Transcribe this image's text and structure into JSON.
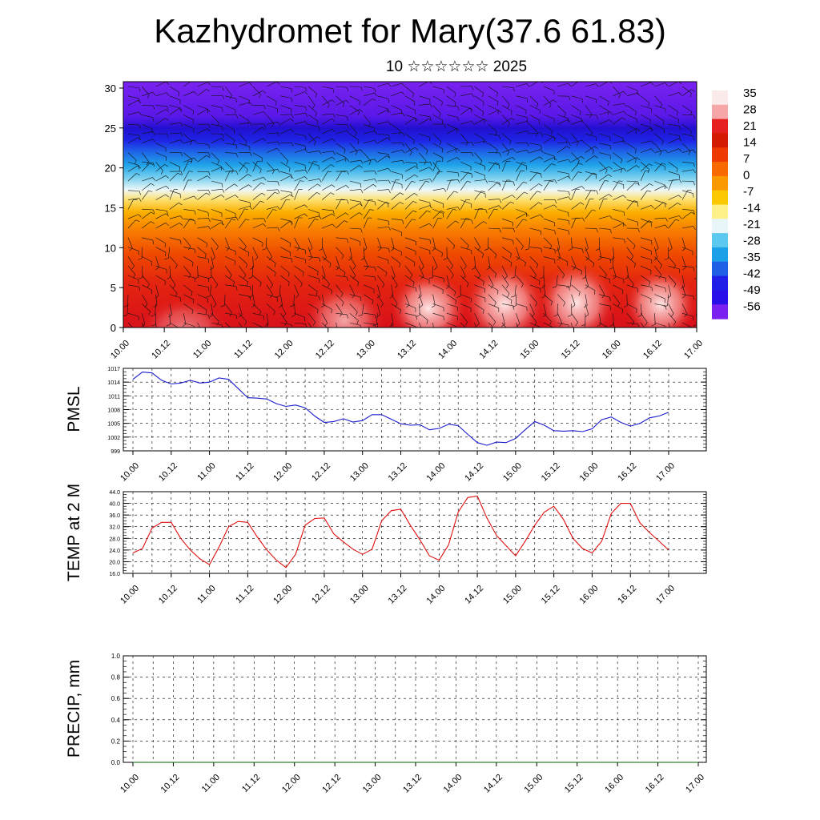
{
  "header": {
    "title": "Kazhydromet for Mary(37.6 61.83)",
    "subtitle": "10 ☆☆☆☆☆☆ 2025"
  },
  "colors": {
    "pmsl_line": "#1a1acc",
    "temp_line": "#e01010",
    "precip_line": "#006400",
    "frame": "#000000",
    "grid": "#000000"
  },
  "time_tick_labels": [
    "10.00",
    "10.12",
    "11.00",
    "11.12",
    "12.00",
    "12.12",
    "13.00",
    "13.12",
    "14.00",
    "14.12",
    "15.00",
    "15.12",
    "16.00",
    "16.12",
    "17.00"
  ],
  "chart_data": [
    {
      "type": "heatmap",
      "name_hint": "vertical cross-section with wind barbs",
      "x_tick_labels": [
        "10.00",
        "10.12",
        "11.00",
        "11.12",
        "12.00",
        "12.12",
        "13.00",
        "13.12",
        "14.00",
        "14.12",
        "15.00",
        "15.12",
        "16.00",
        "16.12",
        "17.00"
      ],
      "y_tick_labels": [
        "0",
        "5",
        "10",
        "15",
        "20",
        "25",
        "30"
      ],
      "ylim": [
        0,
        30.8
      ],
      "colorbar_labels": [
        "35",
        "28",
        "21",
        "14",
        "7",
        "0",
        "-7",
        "-14",
        "-21",
        "-28",
        "-35",
        "-42",
        "-49",
        "-56"
      ],
      "colorbar_range": [
        -60,
        38
      ],
      "colorbar_colors": [
        "#fbeaea",
        "#f6a6a6",
        "#e62020",
        "#d41a00",
        "#ee3a00",
        "#f86a00",
        "#fb9a00",
        "#fcc800",
        "#fef08a",
        "#e8f6fa",
        "#5ac8ef",
        "#1aa0e6",
        "#1f5fe8",
        "#1f1fe8",
        "#2a10e8",
        "#7a20f0"
      ],
      "wind_barbs": true
    },
    {
      "type": "line",
      "ylabel": "PMSL",
      "y_tick_labels": [
        "1017",
        "1014",
        "1011",
        "1008",
        "1005",
        "1002",
        "999"
      ],
      "ylim": [
        999,
        1017
      ],
      "x_tick_labels": [
        "10.00",
        "10.12",
        "11.00",
        "11.12",
        "12.00",
        "12.12",
        "13.00",
        "13.12",
        "14.00",
        "14.12",
        "15.00",
        "15.12",
        "16.00",
        "16.12",
        "17.00"
      ],
      "x_hours": [
        0,
        3,
        6,
        9,
        12,
        15,
        18,
        21,
        24,
        27,
        30,
        33,
        36,
        39,
        42,
        45,
        48,
        51,
        54,
        57,
        60,
        63,
        66,
        69,
        72,
        75,
        78,
        81,
        84,
        87,
        90,
        93,
        96,
        99,
        102,
        105,
        108,
        111,
        114,
        117,
        120,
        123,
        126,
        129,
        132,
        135,
        138,
        141,
        144,
        147,
        150,
        153,
        156,
        159,
        162,
        165,
        168
      ],
      "values": [
        1014.6,
        1016.2,
        1016.0,
        1014.4,
        1013.6,
        1013.8,
        1014.4,
        1013.8,
        1014.0,
        1014.9,
        1014.6,
        1012.6,
        1010.6,
        1010.5,
        1010.3,
        1009.3,
        1008.7,
        1009.0,
        1008.4,
        1006.6,
        1005.2,
        1005.4,
        1006.0,
        1005.3,
        1005.6,
        1006.9,
        1006.9,
        1005.9,
        1004.9,
        1004.6,
        1004.7,
        1003.6,
        1003.9,
        1004.8,
        1004.5,
        1002.6,
        1000.8,
        1000.2,
        1000.9,
        1000.8,
        1001.7,
        1003.6,
        1005.4,
        1004.6,
        1003.4,
        1003.3,
        1003.4,
        1003.2,
        1003.8,
        1005.8,
        1006.4,
        1005.2,
        1004.4,
        1005.0,
        1006.2,
        1006.6,
        1007.4
      ],
      "color": "#1a1acc"
    },
    {
      "type": "line",
      "ylabel": "TEMP at 2 M",
      "y_tick_labels": [
        "44.0",
        "40.0",
        "36.0",
        "32.0",
        "28.0",
        "24.0",
        "20.0",
        "16.0"
      ],
      "ylim": [
        16,
        44
      ],
      "x_tick_labels": [
        "10.00",
        "10.12",
        "11.00",
        "11.12",
        "12.00",
        "12.12",
        "13.00",
        "13.12",
        "14.00",
        "14.12",
        "15.00",
        "15.12",
        "16.00",
        "16.12",
        "17.00"
      ],
      "x_hours": [
        0,
        3,
        6,
        9,
        12,
        15,
        18,
        21,
        24,
        27,
        30,
        33,
        36,
        39,
        42,
        45,
        48,
        51,
        54,
        57,
        60,
        63,
        66,
        69,
        72,
        75,
        78,
        81,
        84,
        87,
        90,
        93,
        96,
        99,
        102,
        105,
        108,
        111,
        114,
        117,
        120,
        123,
        126,
        129,
        132,
        135,
        138,
        141,
        144,
        147,
        150,
        153,
        156,
        159,
        162,
        165,
        168
      ],
      "values": [
        23.0,
        24.5,
        31.5,
        33.5,
        33.5,
        28.0,
        24.0,
        21.0,
        19.0,
        25.0,
        32.0,
        33.8,
        33.5,
        28.5,
        24.0,
        20.5,
        18.0,
        22.5,
        32.5,
        34.8,
        35.0,
        29.5,
        26.8,
        24.3,
        22.5,
        24.3,
        34.0,
        37.5,
        38.0,
        32.5,
        27.5,
        22.0,
        20.5,
        25.8,
        37.0,
        42.0,
        42.5,
        35.0,
        29.0,
        25.5,
        22.0,
        27.0,
        32.5,
        37.0,
        39.0,
        34.5,
        28.0,
        24.5,
        23.0,
        27.0,
        36.5,
        40.0,
        40.0,
        33.3,
        30.0,
        27.0,
        24.0
      ],
      "color": "#e01010"
    },
    {
      "type": "line",
      "ylabel": "PRECIP, mm",
      "y_tick_labels": [
        "1.0",
        "0.8",
        "0.6",
        "0.4",
        "0.2",
        "0.0"
      ],
      "ylim": [
        0,
        1
      ],
      "x_tick_labels": [
        "10.00",
        "10.12",
        "11.00",
        "11.12",
        "12.00",
        "12.12",
        "13.00",
        "13.12",
        "14.00",
        "14.12",
        "15.00",
        "15.12",
        "16.00",
        "16.12",
        "17.00"
      ],
      "values": [
        0,
        0,
        0,
        0,
        0,
        0,
        0,
        0,
        0,
        0,
        0,
        0,
        0,
        0,
        0
      ],
      "color": "#006400"
    }
  ]
}
